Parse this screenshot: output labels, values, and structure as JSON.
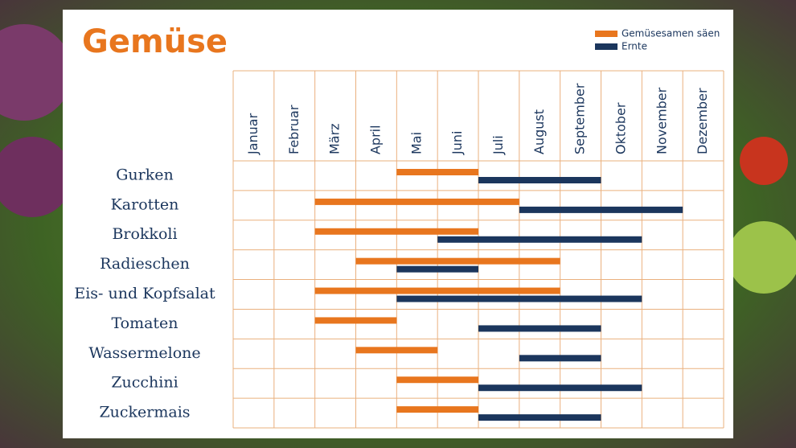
{
  "chart_data": {
    "type": "gantt",
    "title": "Gemüse",
    "months": [
      "Januar",
      "Februar",
      "März",
      "April",
      "Mai",
      "Juni",
      "Juli",
      "August",
      "September",
      "Oktober",
      "November",
      "Dezember"
    ],
    "categories": [
      "Gurken",
      "Karotten",
      "Brokkoli",
      "Radieschen",
      "Eis- und Kopfsalat",
      "Tomaten",
      "Wassermelone",
      "Zucchini",
      "Zuckermais"
    ],
    "series": [
      {
        "name": "Gemüsesamen säen",
        "color": "#e8761e",
        "values": [
          [
            4,
            6
          ],
          [
            2,
            7
          ],
          [
            2,
            6
          ],
          [
            3,
            8
          ],
          [
            2,
            8
          ],
          [
            2,
            4
          ],
          [
            3,
            5
          ],
          [
            4,
            6
          ],
          [
            4,
            6
          ]
        ]
      },
      {
        "name": "Ernte",
        "color": "#1b365d",
        "values": [
          [
            6,
            9
          ],
          [
            7,
            11
          ],
          [
            5,
            10
          ],
          [
            4,
            6
          ],
          [
            4,
            10
          ],
          [
            6,
            9
          ],
          [
            7,
            9
          ],
          [
            6,
            10
          ],
          [
            6,
            9
          ]
        ]
      }
    ]
  }
}
